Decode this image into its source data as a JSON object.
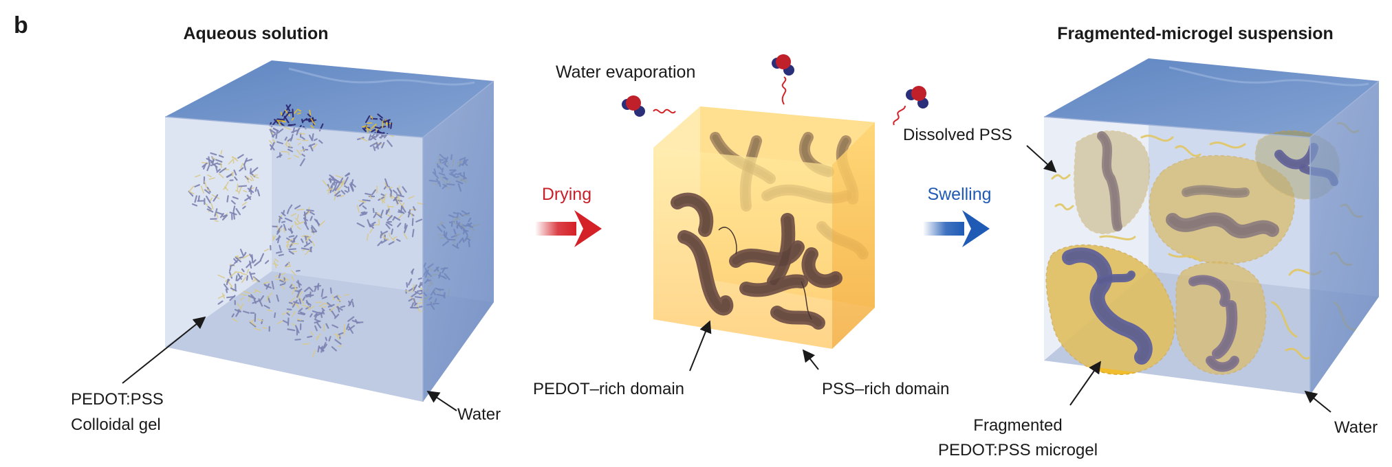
{
  "panel_letter": "b",
  "titles": {
    "left": "Aqueous solution",
    "right": "Fragmented-microgel suspension"
  },
  "process": {
    "drying": "Drying",
    "swelling": "Swelling",
    "evaporation": "Water evaporation"
  },
  "labels": {
    "colloidal_gel_line1": "PEDOT:PSS",
    "colloidal_gel_line2": "Colloidal gel",
    "water_left": "Water",
    "pedot_rich": "PEDOT–rich domain",
    "pss_rich": "PSS–rich domain",
    "dissolved_pss": "Dissolved PSS",
    "microgel_line1": "Fragmented",
    "microgel_line2": "PEDOT:PSS microgel",
    "water_right": "Water"
  },
  "colors": {
    "water_front": "#b9c6e0",
    "water_top": "#6e92c8",
    "water_side": "#7f98c8",
    "film_front": "#ffd36b",
    "film_top": "#ffe9a6",
    "film_side": "#f6b84a",
    "pedot_dark": "#2a2670",
    "pedot_brown": "#6e4e45",
    "pss_yellow": "#f2c21a",
    "drying_arrow": "#d42027",
    "swelling_arrow": "#1f5bb5",
    "molecule_oxygen": "#c0202a",
    "molecule_hydrogen": "#2b2f7a"
  },
  "icons": [
    "water-molecule-icon",
    "drying-arrow-icon",
    "swelling-arrow-icon"
  ]
}
